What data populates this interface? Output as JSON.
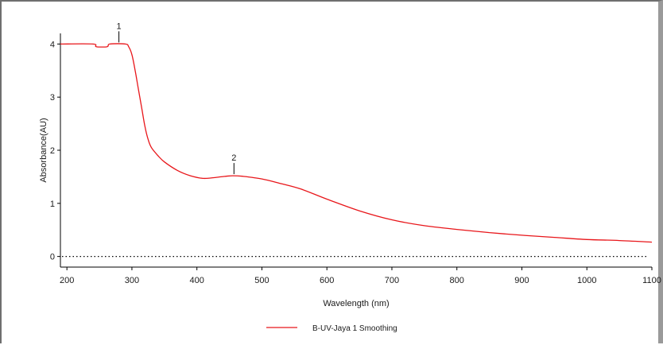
{
  "chart_data": {
    "type": "line",
    "xlabel": "Wavelength (nm)",
    "ylabel": "Absorbance(AU)",
    "xlim": [
      190,
      1100
    ],
    "ylim": [
      -0.2,
      4.2
    ],
    "x_ticks": [
      200,
      300,
      400,
      500,
      600,
      700,
      800,
      900,
      1000,
      1100
    ],
    "y_ticks": [
      0,
      1,
      2,
      3,
      4
    ],
    "grid": false,
    "baseline": {
      "y": 0,
      "style": "dotted"
    },
    "legend": {
      "placement": "bottom-center"
    },
    "series": [
      {
        "name": "B-UV-Jaya 1 Smoothing",
        "color": "#e8161a",
        "x": [
          190,
          240,
          245,
          262,
          266,
          290,
          295,
          300,
          305,
          310,
          315,
          320,
          325,
          330,
          340,
          350,
          370,
          390,
          410,
          430,
          445,
          455,
          470,
          500,
          530,
          560,
          600,
          650,
          700,
          750,
          800,
          850,
          900,
          950,
          1000,
          1050,
          1100
        ],
        "y": [
          4.0,
          4.0,
          3.95,
          3.95,
          4.0,
          4.0,
          3.95,
          3.8,
          3.5,
          3.15,
          2.8,
          2.45,
          2.2,
          2.05,
          1.9,
          1.78,
          1.62,
          1.52,
          1.47,
          1.49,
          1.51,
          1.52,
          1.51,
          1.46,
          1.37,
          1.27,
          1.08,
          0.86,
          0.69,
          0.58,
          0.51,
          0.45,
          0.4,
          0.36,
          0.32,
          0.3,
          0.27
        ]
      }
    ],
    "peaks": [
      {
        "label": "1",
        "x": 280,
        "y": 4.0
      },
      {
        "label": "2",
        "x": 457,
        "y": 1.52
      }
    ]
  }
}
